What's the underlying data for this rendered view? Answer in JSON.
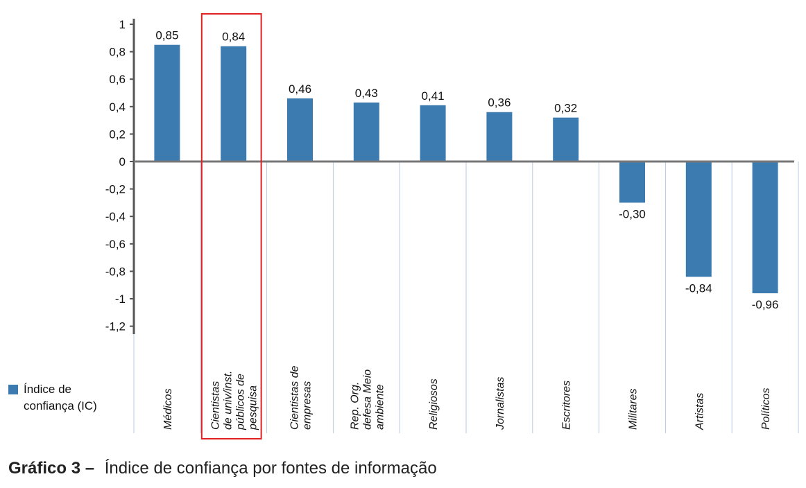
{
  "chart_data": {
    "type": "bar",
    "categories": [
      "Médicos",
      "Cientistas de univ/inst. públicos de pesquisa",
      "Cientistas de empresas",
      "Rep. Org. defesa Meio ambiente",
      "Religiosos",
      "Jornalistas",
      "Escritores",
      "Militares",
      "Artistas",
      "Políticos"
    ],
    "category_lines": [
      [
        "Médicos"
      ],
      [
        "Cientistas",
        "de univ/inst.",
        "públicos de",
        "pesquisa"
      ],
      [
        "Cientistas de",
        "empresas"
      ],
      [
        "Rep. Org.",
        "defesa Meio",
        "ambiente"
      ],
      [
        "Religiosos"
      ],
      [
        "Jornalistas"
      ],
      [
        "Escritores"
      ],
      [
        "Militares"
      ],
      [
        "Artistas"
      ],
      [
        "Políticos"
      ]
    ],
    "series": [
      {
        "name": "Índice de confiança (IC)",
        "values": [
          0.85,
          0.84,
          0.46,
          0.43,
          0.41,
          0.36,
          0.32,
          -0.3,
          -0.84,
          -0.96
        ]
      }
    ],
    "value_labels": [
      "0,85",
      "0,84",
      "0,46",
      "0,43",
      "0,41",
      "0,36",
      "0,32",
      "-0,30",
      "-0,84",
      "-0,96"
    ],
    "ylim": [
      -1.2,
      1
    ],
    "yticks": [
      1,
      0.8,
      0.6,
      0.4,
      0.2,
      0,
      -0.2,
      -0.4,
      -0.6,
      -0.8,
      -1,
      -1.2
    ],
    "ytick_labels": [
      "1",
      "0,8",
      "0,6",
      "0,4",
      "0,2",
      "0",
      "-0,2",
      "-0,4",
      "-0,6",
      "-0,8",
      "-1",
      "-1,2"
    ],
    "highlighted_category": "Cientistas de univ/inst. públicos de pesquisa",
    "bar_color": "#3b7bb0",
    "highlight_color": "#e02020",
    "grid": false,
    "legend_position": "left"
  },
  "legend": {
    "label": "Índice de confiança (IC)"
  },
  "caption": {
    "prefix": "Gráfico  3  –",
    "text": "Índice de confiança por fontes de informação"
  }
}
